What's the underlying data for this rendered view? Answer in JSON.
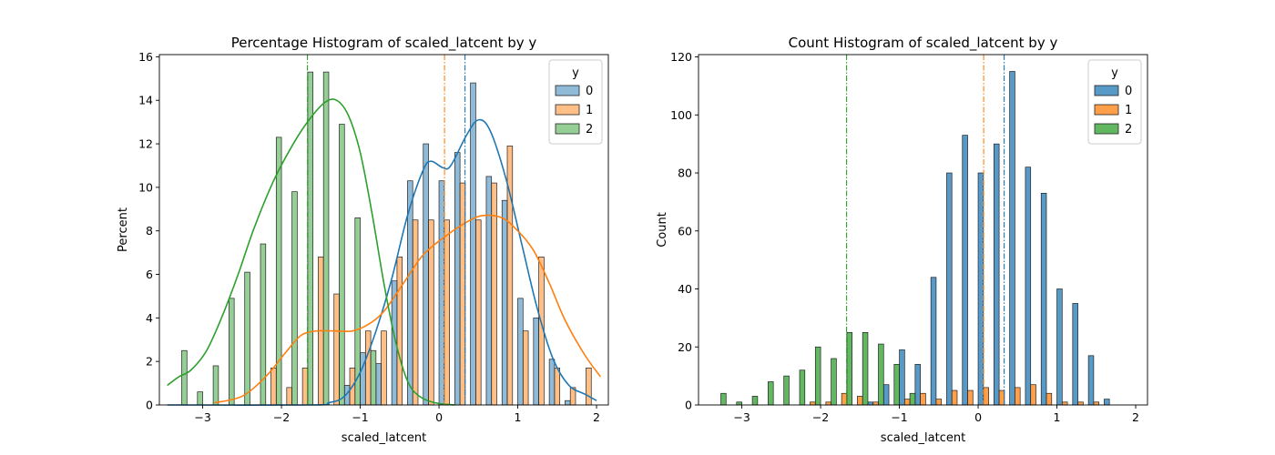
{
  "chart_data": [
    {
      "type": "bar",
      "title": "Percentage Histogram of scaled_latcent by y",
      "xlabel": "scaled_latcent",
      "ylabel": "Percent",
      "xlim": [
        -3.55,
        2.15
      ],
      "ylim": [
        0,
        16.1
      ],
      "xticks": [
        -3,
        -2,
        -1,
        0,
        1,
        2
      ],
      "xtick_labels": [
        "−3",
        "−2",
        "−1",
        "0",
        "1",
        "2"
      ],
      "yticks": [
        0,
        2,
        4,
        6,
        8,
        10,
        12,
        14,
        16
      ],
      "ytick_labels": [
        "0",
        "2",
        "4",
        "6",
        "8",
        "10",
        "12",
        "14",
        "16"
      ],
      "legend": {
        "title": "y",
        "placement": "top-right",
        "labels": [
          "0",
          "1",
          "2"
        ]
      },
      "grid": false,
      "bin_width": 0.2,
      "series": [
        {
          "name": "0",
          "color": "#1f77b4",
          "bins": [
            [
              -1.2,
              0.9
            ],
            [
              -1.0,
              2.4
            ],
            [
              -0.8,
              1.9
            ],
            [
              -0.6,
              5.7
            ],
            [
              -0.4,
              10.3
            ],
            [
              -0.2,
              12.0
            ],
            [
              0.0,
              10.3
            ],
            [
              0.2,
              11.6
            ],
            [
              0.4,
              14.8
            ],
            [
              0.6,
              10.5
            ],
            [
              0.8,
              9.4
            ],
            [
              1.0,
              4.9
            ],
            [
              1.2,
              4.0
            ],
            [
              1.4,
              2.1
            ],
            [
              1.6,
              0.2
            ]
          ],
          "kde": [
            [
              -3.45,
              0.0
            ],
            [
              -1.6,
              0.0
            ],
            [
              -1.4,
              0.1
            ],
            [
              -1.2,
              0.4
            ],
            [
              -1.0,
              1.5
            ],
            [
              -0.8,
              3.4
            ],
            [
              -0.6,
              5.8
            ],
            [
              -0.4,
              8.7
            ],
            [
              -0.2,
              10.8
            ],
            [
              -0.1,
              11.2
            ],
            [
              0.05,
              10.9
            ],
            [
              0.15,
              11.0
            ],
            [
              0.35,
              12.4
            ],
            [
              0.5,
              13.1
            ],
            [
              0.65,
              12.6
            ],
            [
              0.85,
              10.4
            ],
            [
              1.05,
              7.4
            ],
            [
              1.25,
              4.4
            ],
            [
              1.45,
              2.1
            ],
            [
              1.65,
              0.9
            ],
            [
              1.85,
              0.5
            ],
            [
              2.0,
              0.2
            ]
          ],
          "mean": 0.33
        },
        {
          "name": "1",
          "color": "#ff7f0e",
          "bins": [
            [
              -2.2,
              1.7
            ],
            [
              -2.0,
              0.8
            ],
            [
              -1.8,
              1.7
            ],
            [
              -1.6,
              6.8
            ],
            [
              -1.4,
              5.1
            ],
            [
              -1.2,
              1.7
            ],
            [
              -1.0,
              3.4
            ],
            [
              -0.8,
              3.4
            ],
            [
              -0.6,
              6.8
            ],
            [
              -0.4,
              8.5
            ],
            [
              -0.2,
              8.5
            ],
            [
              0.0,
              8.5
            ],
            [
              0.2,
              10.2
            ],
            [
              0.4,
              8.5
            ],
            [
              0.6,
              10.2
            ],
            [
              0.8,
              11.9
            ],
            [
              1.0,
              3.4
            ],
            [
              1.2,
              6.8
            ],
            [
              1.4,
              1.7
            ],
            [
              1.6,
              0.8
            ],
            [
              1.8,
              1.7
            ]
          ],
          "kde": [
            [
              -2.85,
              0.1
            ],
            [
              -2.5,
              0.4
            ],
            [
              -2.2,
              1.3
            ],
            [
              -1.95,
              2.4
            ],
            [
              -1.75,
              3.2
            ],
            [
              -1.55,
              3.4
            ],
            [
              -1.3,
              3.4
            ],
            [
              -1.1,
              3.4
            ],
            [
              -0.9,
              3.7
            ],
            [
              -0.7,
              4.3
            ],
            [
              -0.45,
              5.6
            ],
            [
              -0.2,
              6.9
            ],
            [
              0.1,
              7.8
            ],
            [
              0.35,
              8.4
            ],
            [
              0.55,
              8.7
            ],
            [
              0.8,
              8.6
            ],
            [
              1.0,
              8.0
            ],
            [
              1.2,
              7.1
            ],
            [
              1.4,
              5.6
            ],
            [
              1.6,
              3.9
            ],
            [
              1.85,
              2.3
            ],
            [
              2.05,
              1.3
            ]
          ],
          "mean": 0.07
        },
        {
          "name": "2",
          "color": "#2ca02c",
          "bins": [
            [
              -3.4,
              2.5
            ],
            [
              -3.2,
              0.6
            ],
            [
              -3.0,
              1.8
            ],
            [
              -2.8,
              4.9
            ],
            [
              -2.6,
              6.1
            ],
            [
              -2.4,
              7.4
            ],
            [
              -2.2,
              12.3
            ],
            [
              -2.0,
              9.8
            ],
            [
              -1.8,
              15.3
            ],
            [
              -1.6,
              15.3
            ],
            [
              -1.4,
              12.9
            ],
            [
              -1.2,
              8.6
            ],
            [
              -1.0,
              2.5
            ]
          ],
          "kde": [
            [
              -3.45,
              0.9
            ],
            [
              -3.3,
              1.3
            ],
            [
              -3.15,
              1.6
            ],
            [
              -2.95,
              2.5
            ],
            [
              -2.75,
              4.1
            ],
            [
              -2.55,
              6.0
            ],
            [
              -2.35,
              8.1
            ],
            [
              -2.1,
              10.3
            ],
            [
              -1.85,
              12.0
            ],
            [
              -1.65,
              13.1
            ],
            [
              -1.45,
              13.9
            ],
            [
              -1.3,
              14.0
            ],
            [
              -1.15,
              13.3
            ],
            [
              -1.0,
              11.6
            ],
            [
              -0.85,
              8.8
            ],
            [
              -0.7,
              5.6
            ],
            [
              -0.55,
              2.9
            ],
            [
              -0.4,
              1.1
            ],
            [
              -0.25,
              0.4
            ],
            [
              -0.05,
              0.1
            ],
            [
              0.2,
              0.0
            ]
          ],
          "mean": -1.67
        }
      ]
    },
    {
      "type": "bar",
      "title": "Count Histogram of scaled_latcent by y",
      "xlabel": "scaled_latcent",
      "ylabel": "Count",
      "xlim": [
        -3.55,
        2.15
      ],
      "ylim": [
        0,
        120.8
      ],
      "xticks": [
        -3,
        -2,
        -1,
        0,
        1,
        2
      ],
      "xtick_labels": [
        "−3",
        "−2",
        "−1",
        "0",
        "1",
        "2"
      ],
      "yticks": [
        0,
        20,
        40,
        60,
        80,
        100,
        120
      ],
      "ytick_labels": [
        "0",
        "20",
        "40",
        "60",
        "80",
        "100",
        "120"
      ],
      "legend": {
        "title": "y",
        "placement": "top-right",
        "labels": [
          "0",
          "1",
          "2"
        ]
      },
      "grid": false,
      "bin_width": 0.2,
      "series": [
        {
          "name": "0",
          "color": "#1f77b4",
          "bins": [
            [
              -1.4,
              1
            ],
            [
              -1.2,
              7
            ],
            [
              -1.0,
              19
            ],
            [
              -0.8,
              14
            ],
            [
              -0.6,
              44
            ],
            [
              -0.4,
              80
            ],
            [
              -0.2,
              93
            ],
            [
              0.0,
              80
            ],
            [
              0.2,
              90
            ],
            [
              0.4,
              115
            ],
            [
              0.6,
              82
            ],
            [
              0.8,
              73
            ],
            [
              1.0,
              40
            ],
            [
              1.2,
              35
            ],
            [
              1.4,
              17
            ],
            [
              1.6,
              2
            ]
          ],
          "mean": 0.33
        },
        {
          "name": "1",
          "color": "#ff7f0e",
          "bins": [
            [
              -2.2,
              1
            ],
            [
              -2.0,
              1
            ],
            [
              -1.8,
              4
            ],
            [
              -1.6,
              3
            ],
            [
              -1.4,
              1
            ],
            [
              -1.0,
              2
            ],
            [
              -0.8,
              4
            ],
            [
              -0.6,
              2
            ],
            [
              -0.4,
              5
            ],
            [
              -0.2,
              5
            ],
            [
              0.0,
              6
            ],
            [
              0.2,
              5
            ],
            [
              0.4,
              6
            ],
            [
              0.6,
              7
            ],
            [
              0.8,
              4
            ],
            [
              1.0,
              1
            ],
            [
              1.2,
              1
            ],
            [
              1.4,
              1
            ]
          ],
          "mean": 0.07
        },
        {
          "name": "2",
          "color": "#2ca02c",
          "bins": [
            [
              -3.4,
              4
            ],
            [
              -3.2,
              1
            ],
            [
              -3.0,
              3
            ],
            [
              -2.8,
              8
            ],
            [
              -2.6,
              10
            ],
            [
              -2.4,
              12
            ],
            [
              -2.2,
              20
            ],
            [
              -2.0,
              16
            ],
            [
              -1.8,
              25
            ],
            [
              -1.6,
              25
            ],
            [
              -1.4,
              21
            ],
            [
              -1.2,
              14
            ],
            [
              -1.0,
              4
            ]
          ],
          "mean": -1.67
        }
      ]
    }
  ]
}
